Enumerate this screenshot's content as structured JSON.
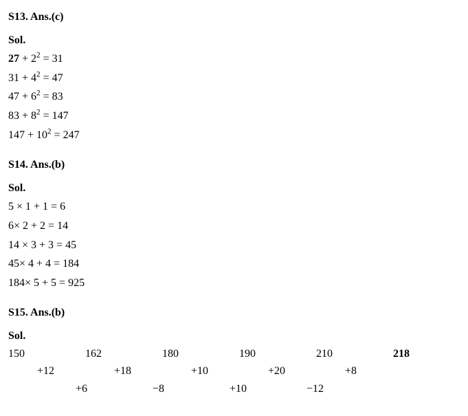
{
  "s13": {
    "title": "S13. Ans.(c)",
    "sol": "Sol.",
    "lines": [
      {
        "prefix_bold": "27",
        "rest": " + 2",
        "exp": "2",
        "eq": " = 31"
      },
      {
        "prefix_bold": "",
        "rest": "31 + 4",
        "exp": "2",
        "eq": " = 47"
      },
      {
        "prefix_bold": "",
        "rest": "47 + 6",
        "exp": "2",
        "eq": " = 83"
      },
      {
        "prefix_bold": "",
        "rest": "83 + 8",
        "exp": "2",
        "eq": " = 147"
      },
      {
        "prefix_bold": "",
        "rest": "147 + 10",
        "exp": "2",
        "eq": " = 247"
      }
    ]
  },
  "s14": {
    "title": "S14. Ans.(b)",
    "sol": "Sol.",
    "lines": [
      "5 × 1 + 1 = 6",
      "6× 2 + 2 = 14",
      "14 × 3 + 3 = 45",
      "45× 4 + 4 = 184",
      "184× 5 + 5 = 925"
    ]
  },
  "s15": {
    "title": "S15. Ans.(b)",
    "sol": "Sol.",
    "row1": [
      "150",
      "162",
      "180",
      "190",
      "210",
      "218"
    ],
    "row1_bold_last": "218",
    "row2": [
      "+12",
      "+18",
      "+10",
      "+20",
      "+8"
    ],
    "row3": [
      "+6",
      "−8",
      "+10",
      "−12"
    ]
  }
}
